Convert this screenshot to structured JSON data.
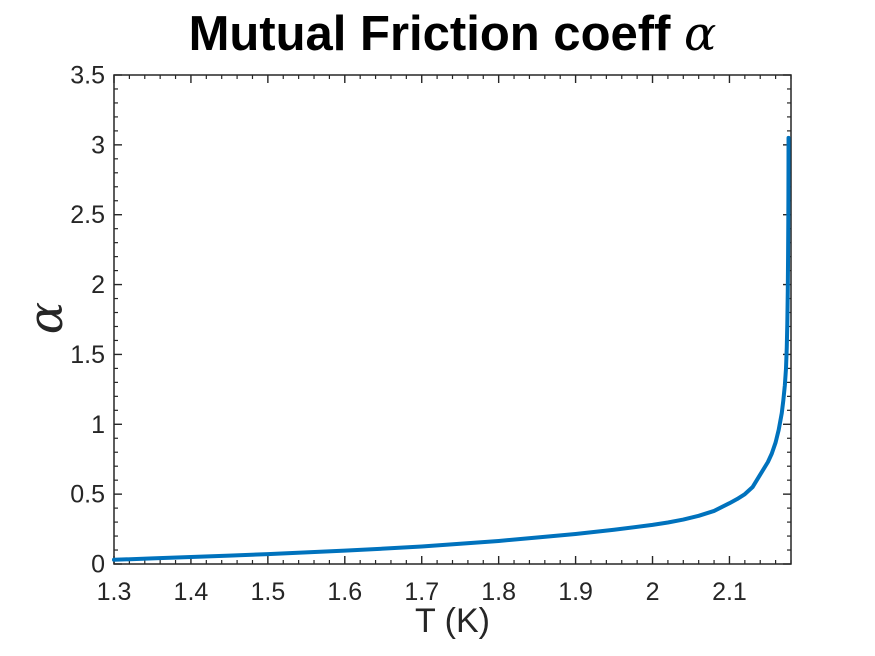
{
  "chart_data": {
    "type": "line",
    "title": "Mutual Friction coeff α",
    "title_text": "Mutual Friction coeff ",
    "title_symbol": "α",
    "xlabel": "T (K)",
    "ylabel": "α",
    "xlim": [
      1.3,
      2.18
    ],
    "ylim": [
      0,
      3.5
    ],
    "grid": false,
    "legend": "none",
    "background": "#ffffff",
    "line_color": "#0072BD",
    "axis_color": "#262626",
    "title_color": "#000000",
    "line_width": 4,
    "x_minor_tick_step": 0.02,
    "y_minor_tick_step": 0.1,
    "xticks": {
      "values": [
        1.3,
        1.4,
        1.5,
        1.6,
        1.7,
        1.8,
        1.9,
        2.0,
        2.1
      ],
      "labels": [
        "1.3",
        "1.4",
        "1.5",
        "1.6",
        "1.7",
        "1.8",
        "1.9",
        "2",
        "2.1"
      ]
    },
    "yticks": {
      "values": [
        0,
        0.5,
        1.0,
        1.5,
        2.0,
        2.5,
        3.0,
        3.5
      ],
      "labels": [
        "0",
        "0.5",
        "1",
        "1.5",
        "2",
        "2.5",
        "3",
        "3.5"
      ]
    },
    "series": [
      {
        "name": "mutual-friction-coefficient-alpha",
        "x": [
          1.3,
          1.35,
          1.4,
          1.45,
          1.5,
          1.55,
          1.6,
          1.65,
          1.7,
          1.75,
          1.8,
          1.85,
          1.9,
          1.95,
          2.0,
          2.02,
          2.04,
          2.06,
          2.08,
          2.1,
          2.11,
          2.12,
          2.13,
          2.14,
          2.15,
          2.155,
          2.16,
          2.164,
          2.168,
          2.17,
          2.172,
          2.1735,
          2.1745,
          2.1752,
          2.1758,
          2.1762,
          2.1765,
          2.17665,
          2.17672,
          2.17676,
          2.17679
        ],
        "y": [
          0.03,
          0.04,
          0.05,
          0.06,
          0.071,
          0.083,
          0.096,
          0.11,
          0.125,
          0.145,
          0.165,
          0.19,
          0.215,
          0.245,
          0.28,
          0.297,
          0.318,
          0.345,
          0.38,
          0.435,
          0.465,
          0.5,
          0.55,
          0.64,
          0.73,
          0.79,
          0.87,
          0.96,
          1.08,
          1.17,
          1.28,
          1.4,
          1.55,
          1.72,
          1.95,
          2.2,
          2.45,
          2.65,
          2.82,
          2.95,
          3.05
        ]
      }
    ]
  }
}
